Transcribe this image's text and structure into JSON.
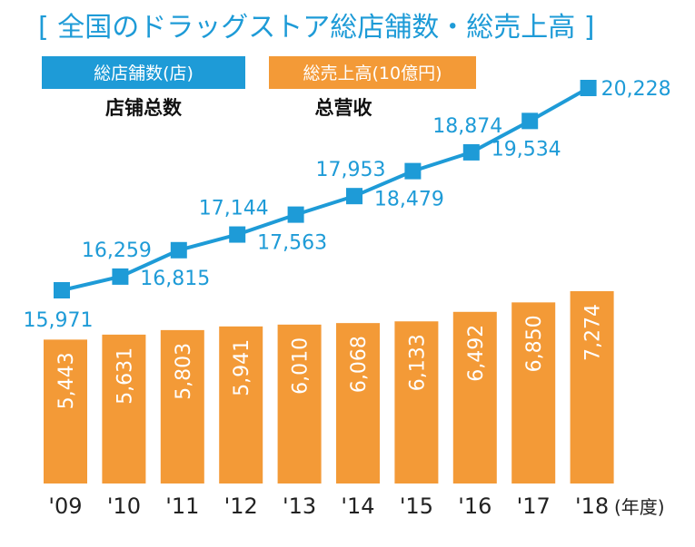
{
  "chart_data": {
    "type": "bar+line",
    "title": "[ 全国のドラッグストア総店舗数・総売上高 ]",
    "categories": [
      "'09",
      "'10",
      "'11",
      "'12",
      "'13",
      "'14",
      "'15",
      "'16",
      "'17",
      "'18"
    ],
    "x_unit": "(年度)",
    "series": [
      {
        "name": "総店舗数(店)",
        "translation": "店铺总数",
        "type": "line",
        "color": "#1e9bd7",
        "values": [
          15971,
          16259,
          16815,
          17144,
          17563,
          17953,
          18479,
          18874,
          19534,
          20228
        ],
        "labels": [
          "15,971",
          "16,259",
          "16,815",
          "17,144",
          "17,563",
          "17,953",
          "18,479",
          "18,874",
          "19,534",
          "20,228"
        ]
      },
      {
        "name": "総売上高(10億円)",
        "translation": "总营收",
        "type": "bar",
        "color": "#f39a37",
        "values": [
          5443,
          5631,
          5803,
          5941,
          6010,
          6068,
          6133,
          6492,
          6850,
          7274
        ],
        "labels": [
          "5,443",
          "5,631",
          "5,803",
          "5,941",
          "6,010",
          "6,068",
          "6,133",
          "6,492",
          "6,850",
          "7,274"
        ]
      }
    ],
    "legend_position": "top-left",
    "grid": false
  }
}
